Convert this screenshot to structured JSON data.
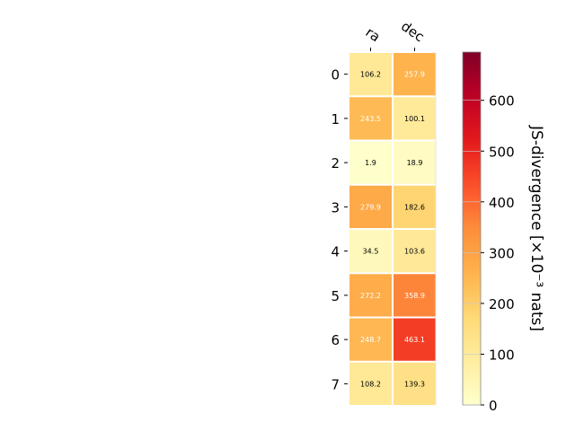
{
  "chart_data": {
    "type": "heatmap",
    "title": "",
    "columns": [
      "ra",
      "dec"
    ],
    "rows": [
      "0",
      "1",
      "2",
      "3",
      "4",
      "5",
      "6",
      "7"
    ],
    "values": [
      [
        106.2,
        257.9
      ],
      [
        243.5,
        100.1
      ],
      [
        1.9,
        18.9
      ],
      [
        279.9,
        182.6
      ],
      [
        34.5,
        103.6
      ],
      [
        272.2,
        358.9
      ],
      [
        248.7,
        463.1
      ],
      [
        108.2,
        139.3
      ]
    ],
    "cell_labels": [
      [
        "106.2",
        "257.9"
      ],
      [
        "243.5",
        "100.1"
      ],
      [
        "1.9",
        "18.9"
      ],
      [
        "279.9",
        "182.6"
      ],
      [
        "34.5",
        "103.6"
      ],
      [
        "272.2",
        "358.9"
      ],
      [
        "248.7",
        "463.1"
      ],
      [
        "108.2",
        "139.3"
      ]
    ],
    "colormap": "YlOrRd",
    "colorbar": {
      "label": "JS-divergence [×10⁻³ nats]",
      "range": [
        0,
        695
      ],
      "ticks": [
        "0",
        "100",
        "200",
        "300",
        "400",
        "500",
        "600"
      ],
      "tick_values": [
        0,
        100,
        200,
        300,
        400,
        500,
        600
      ]
    },
    "colors": {
      "text_dark": "#000000",
      "text_light": "#ffffff",
      "grid": "#ffffff"
    }
  }
}
